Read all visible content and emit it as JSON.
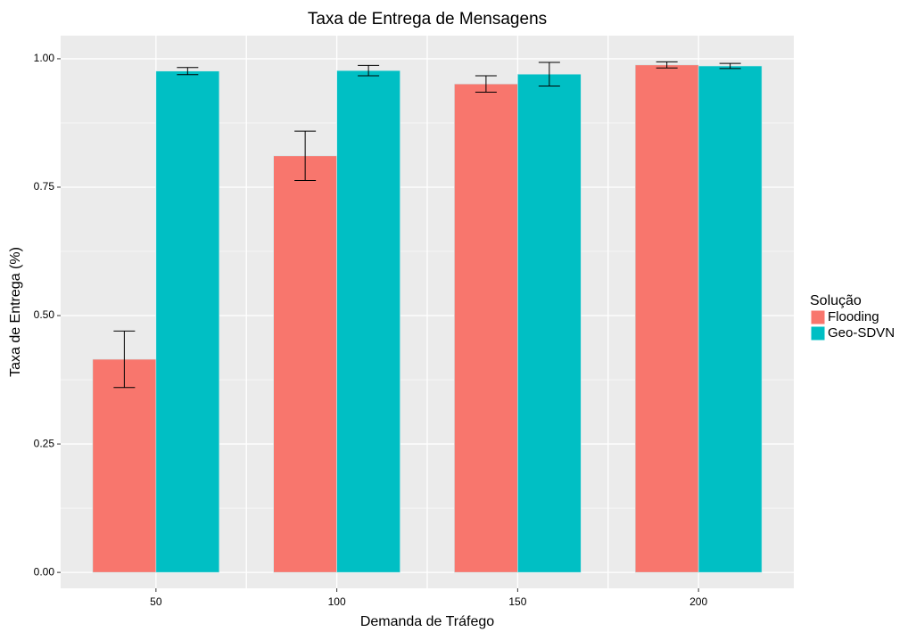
{
  "chart_data": {
    "type": "bar",
    "title": "Taxa de Entrega de Mensagens",
    "x_label": "Demanda de Tráfego",
    "y_label": "Taxa de Entrega (%)",
    "legend_title": "Solução",
    "legend_position": "right",
    "categories": [
      "50",
      "100",
      "150",
      "200"
    ],
    "series": [
      {
        "name": "Flooding",
        "color": "#f8766d",
        "values": [
          0.415,
          0.811,
          0.951,
          0.988
        ],
        "errors": [
          0.055,
          0.048,
          0.016,
          0.006
        ]
      },
      {
        "name": "Geo-SDVN",
        "color": "#00bfc4",
        "values": [
          0.976,
          0.977,
          0.97,
          0.986
        ],
        "errors": [
          0.007,
          0.01,
          0.023,
          0.005
        ]
      }
    ],
    "ylim": [
      -0.031,
      1.045
    ],
    "yticks": [
      {
        "value": 0,
        "label": "0.00"
      },
      {
        "value": 0.25,
        "label": "0.25"
      },
      {
        "value": 0.5,
        "label": "0.50"
      },
      {
        "value": 0.75,
        "label": "0.75"
      },
      {
        "value": 1,
        "label": "1.00"
      }
    ],
    "grid": true
  }
}
